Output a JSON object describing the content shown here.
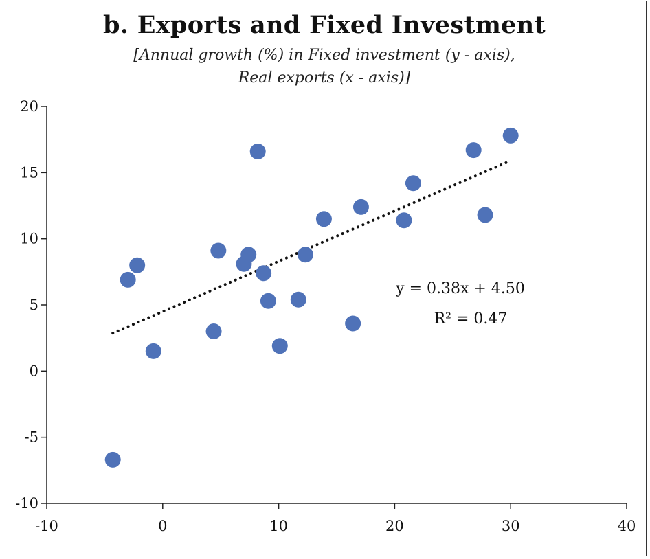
{
  "chart_data": {
    "type": "scatter",
    "title": "b. Exports and Fixed Investment",
    "subtitle_line1": "[Annual growth (%) in Fixed investment (y - axis),",
    "subtitle_line2": "Real exports (x - axis)]",
    "xlabel": "Real exports",
    "ylabel": "Fixed investment",
    "xlim": [
      -10,
      40
    ],
    "ylim": [
      -10,
      20
    ],
    "xticks": [
      -10,
      0,
      10,
      20,
      30,
      40
    ],
    "yticks": [
      -10,
      -5,
      0,
      5,
      10,
      15,
      20
    ],
    "grid": false,
    "point_color": "#4f72b8",
    "points": [
      {
        "x": -4.3,
        "y": -6.7
      },
      {
        "x": -3.0,
        "y": 6.9
      },
      {
        "x": -2.2,
        "y": 8.0
      },
      {
        "x": -0.8,
        "y": 1.5
      },
      {
        "x": 4.4,
        "y": 3.0
      },
      {
        "x": 4.8,
        "y": 9.1
      },
      {
        "x": 7.0,
        "y": 8.1
      },
      {
        "x": 7.4,
        "y": 8.8
      },
      {
        "x": 8.2,
        "y": 16.6
      },
      {
        "x": 8.7,
        "y": 7.4
      },
      {
        "x": 9.1,
        "y": 5.3
      },
      {
        "x": 10.1,
        "y": 1.9
      },
      {
        "x": 11.7,
        "y": 5.4
      },
      {
        "x": 12.3,
        "y": 8.8
      },
      {
        "x": 13.9,
        "y": 11.5
      },
      {
        "x": 16.4,
        "y": 3.6
      },
      {
        "x": 17.1,
        "y": 12.4
      },
      {
        "x": 20.8,
        "y": 11.4
      },
      {
        "x": 21.6,
        "y": 14.2
      },
      {
        "x": 26.8,
        "y": 16.7
      },
      {
        "x": 27.8,
        "y": 11.8
      },
      {
        "x": 30.0,
        "y": 17.8
      }
    ],
    "trendline": {
      "style": "dotted",
      "slope": 0.38,
      "intercept": 4.5,
      "x_range": [
        -4.3,
        30.0
      ],
      "equation_text": "y = 0.38x + 4.50",
      "r2_text": "R² = 0.47"
    }
  }
}
